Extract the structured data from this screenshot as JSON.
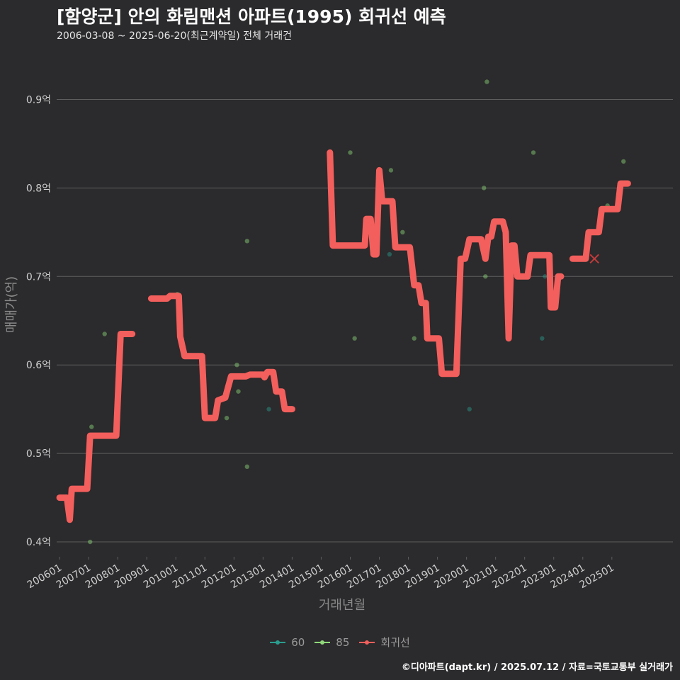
{
  "header": {
    "title": "[함양군] 안의 화림맨션 아파트(1995) 회귀선 예측",
    "subtitle": "2006-03-08 ~ 2025-06-20(최근계약일) 전체 거래건"
  },
  "credit": "©디아파트(dapt.kr) / 2025.07.12 / 자료=국토교통부 실거래가",
  "colors": {
    "s60": "#2a9d8f",
    "s85": "#8fd97a",
    "trend": "#f25f5c",
    "grid": "#5e5e5e",
    "axis_text": "#cfcfcf",
    "axis_title": "#8a8a8a"
  },
  "legend": [
    {
      "key": "s60",
      "label": "60"
    },
    {
      "key": "s85",
      "label": "85"
    },
    {
      "key": "trend",
      "label": "회귀선"
    }
  ],
  "chart_data": {
    "type": "scatter",
    "title": "[함양군] 안의 화림맨션 아파트(1995) 회귀선 예측",
    "xlabel": "거래년월",
    "ylabel": "매매가(억)",
    "xlim": [
      2005.9,
      2027.1
    ],
    "ylim": [
      0.38,
      0.95
    ],
    "x_ticks": [
      {
        "x": 2006.0,
        "label": "200601"
      },
      {
        "x": 2007.0,
        "label": "200701"
      },
      {
        "x": 2008.0,
        "label": "200801"
      },
      {
        "x": 2009.0,
        "label": "200901"
      },
      {
        "x": 2010.0,
        "label": "201001"
      },
      {
        "x": 2011.0,
        "label": "201101"
      },
      {
        "x": 2012.0,
        "label": "201201"
      },
      {
        "x": 2013.0,
        "label": "201301"
      },
      {
        "x": 2014.0,
        "label": "201401"
      },
      {
        "x": 2015.0,
        "label": "201501"
      },
      {
        "x": 2016.0,
        "label": "201601"
      },
      {
        "x": 2017.0,
        "label": "201701"
      },
      {
        "x": 2018.0,
        "label": "201801"
      },
      {
        "x": 2019.0,
        "label": "201901"
      },
      {
        "x": 2020.0,
        "label": "202001"
      },
      {
        "x": 2021.0,
        "label": "202101"
      },
      {
        "x": 2022.0,
        "label": "202201"
      },
      {
        "x": 2023.0,
        "label": "202301"
      },
      {
        "x": 2024.0,
        "label": "202401"
      },
      {
        "x": 2025.0,
        "label": "202501"
      }
    ],
    "y_ticks": [
      {
        "y": 0.4,
        "label": "0.4억"
      },
      {
        "y": 0.5,
        "label": "0.5억"
      },
      {
        "y": 0.6,
        "label": "0.6억"
      },
      {
        "y": 0.7,
        "label": "0.7억"
      },
      {
        "y": 0.8,
        "label": "0.8억"
      },
      {
        "y": 0.9,
        "label": "0.9억"
      }
    ],
    "series": [
      {
        "name": "60",
        "type": "scatter",
        "points": [
          [
            2006.2,
            0.45
          ],
          [
            2013.2,
            0.55
          ],
          [
            2017.35,
            0.725
          ],
          [
            2020.1,
            0.55
          ],
          [
            2022.6,
            0.63
          ],
          [
            2022.7,
            0.7
          ]
        ]
      },
      {
        "name": "85",
        "type": "scatter",
        "points": [
          [
            2007.05,
            0.4
          ],
          [
            2007.1,
            0.53
          ],
          [
            2007.55,
            0.635
          ],
          [
            2010.05,
            0.68
          ],
          [
            2011.75,
            0.54
          ],
          [
            2012.1,
            0.6
          ],
          [
            2012.15,
            0.57
          ],
          [
            2012.45,
            0.74
          ],
          [
            2012.45,
            0.485
          ],
          [
            2016.0,
            0.84
          ],
          [
            2016.15,
            0.63
          ],
          [
            2017.4,
            0.82
          ],
          [
            2017.8,
            0.75
          ],
          [
            2018.2,
            0.63
          ],
          [
            2020.6,
            0.8
          ],
          [
            2020.65,
            0.7
          ],
          [
            2020.7,
            0.92
          ],
          [
            2022.3,
            0.84
          ],
          [
            2024.85,
            0.78
          ],
          [
            2025.4,
            0.83
          ]
        ]
      },
      {
        "name": "회귀선",
        "type": "line",
        "points": [
          [
            2006.0,
            0.45
          ],
          [
            2006.25,
            0.45
          ],
          [
            2006.35,
            0.425
          ],
          [
            2006.45,
            0.46
          ],
          [
            2006.9,
            0.46
          ],
          [
            2007.05,
            0.52
          ],
          [
            2007.9,
            0.52
          ],
          [
            2008.05,
            0.635
          ],
          [
            2008.45,
            0.635
          ],
          [
            2009.3,
            0.675
          ],
          [
            2009.8,
            0.675
          ],
          [
            2009.95,
            0.678
          ],
          [
            2010.05,
            0.678
          ],
          [
            2010.15,
            0.632
          ],
          [
            2010.3,
            0.61
          ],
          [
            2010.9,
            0.61
          ],
          [
            2011.05,
            0.54
          ],
          [
            2011.35,
            0.54
          ],
          [
            2011.5,
            0.563
          ],
          [
            2011.8,
            0.563
          ],
          [
            2011.95,
            0.587
          ],
          [
            2012.4,
            0.587
          ],
          [
            2012.55,
            0.589
          ],
          [
            2013.0,
            0.589
          ],
          [
            2013.2,
            0.592
          ],
          [
            2013.35,
            0.57
          ],
          [
            2013.65,
            0.57
          ],
          [
            2013.75,
            0.55
          ],
          [
            2014.0,
            0.55
          ]
        ],
        "segments": [
          [
            [
              2006.0,
              0.45
            ],
            [
              2006.2,
              0.45
            ],
            [
              2006.25,
              0.45
            ],
            [
              2006.35,
              0.425
            ],
            [
              2006.42,
              0.46
            ],
            [
              2006.95,
              0.46
            ],
            [
              2007.05,
              0.52
            ],
            [
              2007.95,
              0.52
            ],
            [
              2008.1,
              0.635
            ],
            [
              2008.5,
              0.635
            ]
          ],
          [
            [
              2009.15,
              0.675
            ],
            [
              2009.7,
              0.675
            ],
            [
              2009.8,
              0.678
            ],
            [
              2010.1,
              0.678
            ],
            [
              2010.15,
              0.632
            ],
            [
              2010.3,
              0.61
            ],
            [
              2010.9,
              0.61
            ],
            [
              2011.0,
              0.54
            ],
            [
              2011.35,
              0.54
            ],
            [
              2011.45,
              0.56
            ],
            [
              2011.7,
              0.563
            ],
            [
              2011.9,
              0.587
            ],
            [
              2012.4,
              0.587
            ],
            [
              2012.55,
              0.589
            ],
            [
              2013.0,
              0.589
            ],
            [
              2013.05,
              0.586
            ],
            [
              2013.15,
              0.592
            ],
            [
              2013.35,
              0.592
            ],
            [
              2013.45,
              0.57
            ],
            [
              2013.65,
              0.57
            ],
            [
              2013.75,
              0.55
            ],
            [
              2014.0,
              0.55
            ]
          ],
          [
            [
              2015.3,
              0.84
            ],
            [
              2015.4,
              0.735
            ],
            [
              2016.5,
              0.735
            ],
            [
              2016.55,
              0.765
            ],
            [
              2016.7,
              0.765
            ],
            [
              2016.8,
              0.725
            ],
            [
              2016.9,
              0.725
            ],
            [
              2017.0,
              0.82
            ],
            [
              2017.1,
              0.785
            ],
            [
              2017.45,
              0.785
            ],
            [
              2017.55,
              0.733
            ],
            [
              2018.05,
              0.733
            ],
            [
              2018.2,
              0.69
            ],
            [
              2018.35,
              0.69
            ],
            [
              2018.45,
              0.67
            ],
            [
              2018.6,
              0.67
            ],
            [
              2018.65,
              0.63
            ],
            [
              2019.05,
              0.63
            ],
            [
              2019.15,
              0.59
            ],
            [
              2019.65,
              0.59
            ],
            [
              2019.8,
              0.72
            ],
            [
              2019.95,
              0.72
            ],
            [
              2020.1,
              0.742
            ],
            [
              2020.5,
              0.742
            ],
            [
              2020.65,
              0.72
            ],
            [
              2020.75,
              0.745
            ],
            [
              2020.85,
              0.745
            ],
            [
              2020.95,
              0.762
            ],
            [
              2021.25,
              0.762
            ],
            [
              2021.35,
              0.75
            ],
            [
              2021.45,
              0.63
            ],
            [
              2021.55,
              0.735
            ],
            [
              2021.65,
              0.735
            ],
            [
              2021.75,
              0.7
            ],
            [
              2022.1,
              0.7
            ],
            [
              2022.2,
              0.724
            ],
            [
              2022.85,
              0.724
            ],
            [
              2022.9,
              0.665
            ],
            [
              2023.05,
              0.665
            ],
            [
              2023.15,
              0.7
            ],
            [
              2023.25,
              0.7
            ]
          ],
          [
            [
              2023.65,
              0.72
            ],
            [
              2024.1,
              0.72
            ],
            [
              2024.2,
              0.75
            ],
            [
              2024.55,
              0.75
            ],
            [
              2024.65,
              0.776
            ],
            [
              2025.2,
              0.776
            ],
            [
              2025.3,
              0.805
            ],
            [
              2025.55,
              0.805
            ]
          ]
        ]
      }
    ],
    "annotations": [
      {
        "type": "cross",
        "x": 2024.4,
        "y": 0.72
      }
    ],
    "legend_position": "bottom",
    "grid": true
  }
}
